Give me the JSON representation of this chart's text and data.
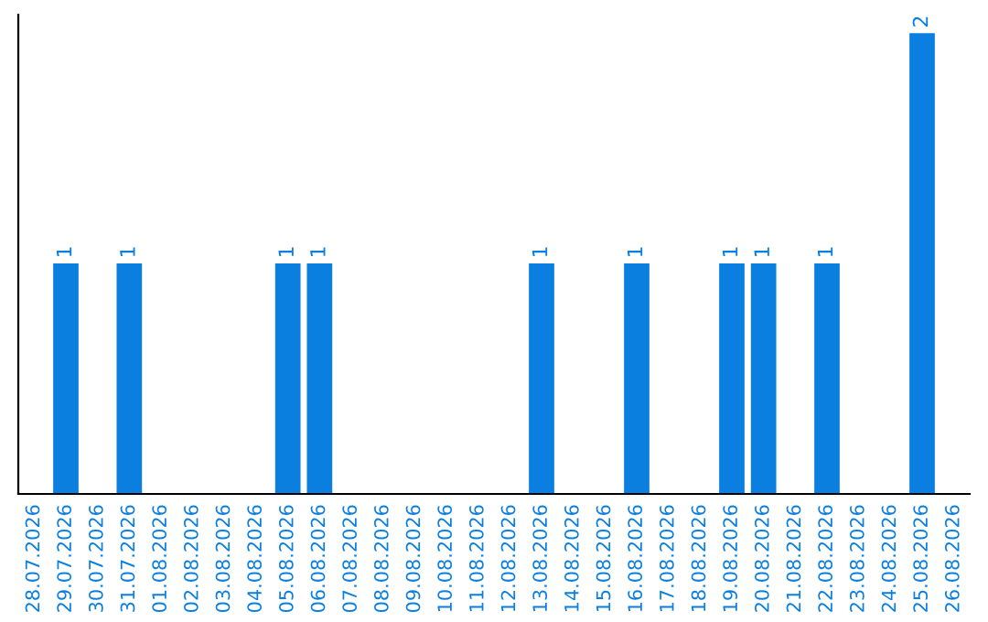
{
  "chart_data": {
    "type": "bar",
    "categories": [
      "28.07.2026",
      "29.07.2026",
      "30.07.2026",
      "31.07.2026",
      "01.08.2026",
      "02.08.2026",
      "03.08.2026",
      "04.08.2026",
      "05.08.2026",
      "06.08.2026",
      "07.08.2026",
      "08.08.2026",
      "09.08.2026",
      "10.08.2026",
      "11.08.2026",
      "12.08.2026",
      "13.08.2026",
      "14.08.2026",
      "15.08.2026",
      "16.08.2026",
      "17.08.2026",
      "18.08.2026",
      "19.08.2026",
      "20.08.2026",
      "21.08.2026",
      "22.08.2026",
      "23.08.2026",
      "24.08.2026",
      "25.08.2026",
      "26.08.2026"
    ],
    "values": [
      0,
      1,
      0,
      1,
      0,
      0,
      0,
      0,
      1,
      1,
      0,
      0,
      0,
      0,
      0,
      0,
      1,
      0,
      0,
      1,
      0,
      0,
      1,
      1,
      0,
      1,
      0,
      0,
      2,
      0
    ],
    "value_labels": [
      null,
      "1",
      null,
      "1",
      null,
      null,
      null,
      null,
      "1",
      "1",
      null,
      null,
      null,
      null,
      null,
      null,
      "1",
      null,
      null,
      "1",
      null,
      null,
      "1",
      "1",
      null,
      "1",
      null,
      null,
      "2",
      null
    ],
    "color": "#0a7fe0",
    "grid": false,
    "legend": false
  }
}
